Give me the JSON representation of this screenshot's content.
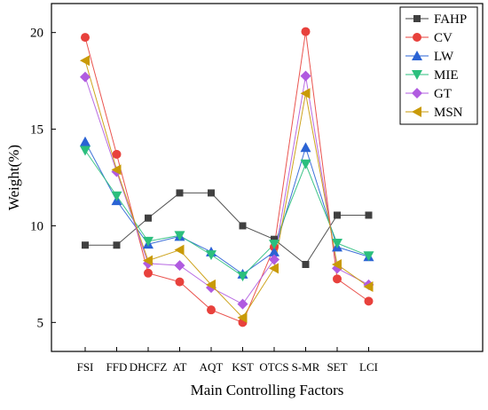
{
  "chart_data": {
    "type": "line",
    "title": "",
    "xlabel": "Main Controlling Factors",
    "ylabel": "Weight(%)",
    "categories": [
      "FSI",
      "FFD",
      "DHCFZ",
      "AT",
      "AQT",
      "KST",
      "OTCS",
      "S-MR",
      "SET",
      "LCI"
    ],
    "ylim": [
      3.5,
      21.5
    ],
    "yticks": [
      5,
      10,
      15,
      20
    ],
    "grid": false,
    "legend_position": "top-right",
    "series": [
      {
        "name": "FAHP",
        "color": "#404040",
        "marker": "square",
        "values": [
          9.0,
          9.0,
          10.4,
          11.7,
          11.7,
          10.0,
          9.3,
          8.0,
          10.55,
          10.55
        ]
      },
      {
        "name": "CV",
        "color": "#e8413c",
        "marker": "circle",
        "values": [
          19.75,
          13.7,
          7.55,
          7.1,
          5.65,
          5.0,
          8.9,
          20.05,
          7.25,
          6.1
        ]
      },
      {
        "name": "LW",
        "color": "#2a63d4",
        "marker": "triangle-up",
        "values": [
          14.35,
          11.3,
          9.05,
          9.45,
          8.65,
          7.5,
          8.65,
          14.05,
          8.9,
          8.4
        ]
      },
      {
        "name": "MIE",
        "color": "#2bbf7d",
        "marker": "triangle-down",
        "values": [
          13.9,
          11.55,
          9.2,
          9.5,
          8.5,
          7.4,
          9.05,
          13.2,
          9.1,
          8.45
        ]
      },
      {
        "name": "GT",
        "color": "#b05be0",
        "marker": "diamond",
        "values": [
          17.7,
          12.8,
          8.05,
          7.95,
          6.8,
          5.95,
          8.25,
          17.75,
          7.8,
          6.95
        ]
      },
      {
        "name": "MSN",
        "color": "#c99a06",
        "marker": "triangle-left",
        "values": [
          18.55,
          12.9,
          8.2,
          8.75,
          6.95,
          5.25,
          7.8,
          16.85,
          8.0,
          6.85
        ]
      }
    ]
  }
}
